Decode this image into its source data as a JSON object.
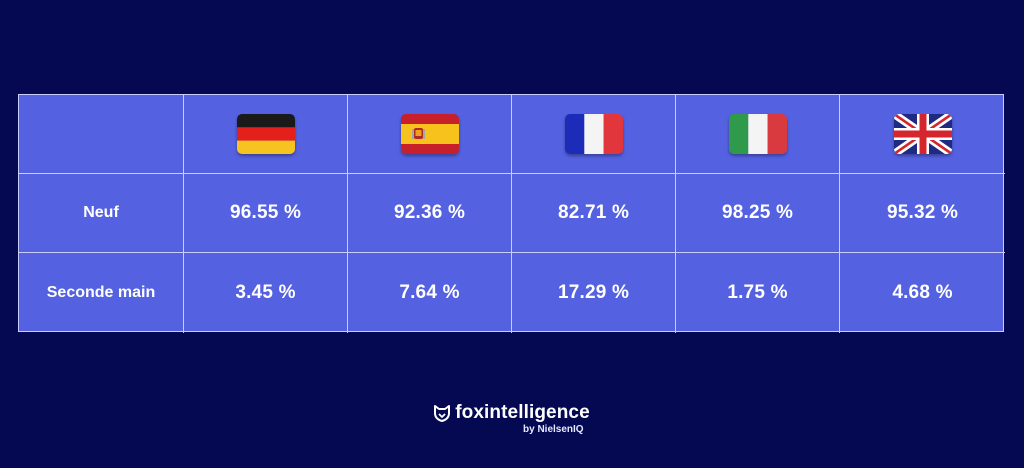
{
  "chart_data": {
    "type": "table",
    "columns": [
      {
        "flag": "germany-flag-icon"
      },
      {
        "flag": "spain-flag-icon"
      },
      {
        "flag": "france-flag-icon"
      },
      {
        "flag": "italy-flag-icon"
      },
      {
        "flag": "uk-flag-icon"
      }
    ],
    "rows": [
      {
        "label": "Neuf",
        "values": [
          96.55,
          92.36,
          82.71,
          98.25,
          95.32
        ],
        "display": [
          "96.55 %",
          "92.36 %",
          "82.71 %",
          "98.25 %",
          "95.32 %"
        ]
      },
      {
        "label": "Seconde main",
        "values": [
          3.45,
          7.64,
          17.29,
          1.75,
          4.68
        ],
        "display": [
          "3.45 %",
          "7.64 %",
          "17.29 %",
          "1.75 %",
          "4.68 %"
        ]
      }
    ]
  },
  "colors": {
    "background": "#040952",
    "table": "#5462e2",
    "grid_lines": "#c9ceff",
    "text": "#ffffff"
  },
  "brand": {
    "name": "foxintelligence",
    "sub": "by NielsenIQ",
    "icon": "fox-icon"
  }
}
